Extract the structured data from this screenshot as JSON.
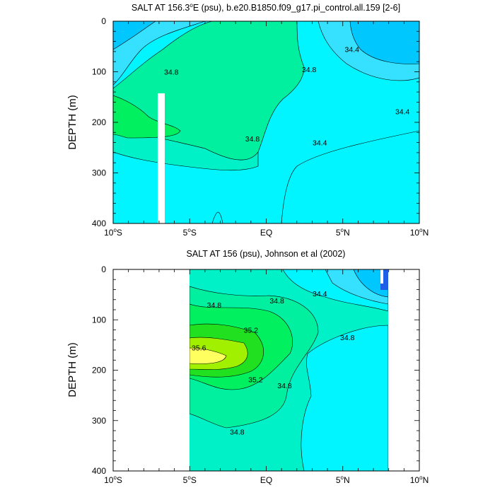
{
  "chart_data": [
    {
      "type": "contour",
      "title": "SALT AT 156.3°E (psu), b.e20.B1850.f09_g17.pi_control.all.159 [2-6]",
      "ylabel": "DEPTH (m)",
      "x_ticks": [
        "10°S",
        "5°S",
        "EQ",
        "5°N",
        "10°N"
      ],
      "x_values": [
        -10,
        -5,
        0,
        5,
        10
      ],
      "y_ticks": [
        "0",
        "100",
        "200",
        "300",
        "400"
      ],
      "y_values": [
        0,
        100,
        200,
        300,
        400
      ],
      "xlim": [
        -10,
        10
      ],
      "ylim": [
        400,
        0
      ],
      "contour_labels": [
        {
          "text": "34.8",
          "x": -6.2,
          "y": 100
        },
        {
          "text": "34.8",
          "x": 2.8,
          "y": 95
        },
        {
          "text": "34.4",
          "x": 5.6,
          "y": 55
        },
        {
          "text": "34.4",
          "x": 8.9,
          "y": 178
        },
        {
          "text": "34.8",
          "x": -0.9,
          "y": 232
        },
        {
          "text": "34.4",
          "x": 3.5,
          "y": 240
        }
      ],
      "fill_colors": [
        "#00c8ff",
        "#36e0ff",
        "#00f5ff",
        "#00f0c8",
        "#00f0a0",
        "#00f060"
      ]
    },
    {
      "type": "contour",
      "title": "SALT AT 156 (psu), Johnson et al (2002)",
      "ylabel": "DEPTH (m)",
      "x_ticks": [
        "10°S",
        "5°S",
        "EQ",
        "5°N",
        "10°N"
      ],
      "x_values": [
        -10,
        -5,
        0,
        5,
        10
      ],
      "y_ticks": [
        "0",
        "100",
        "200",
        "300",
        "400"
      ],
      "y_values": [
        0,
        100,
        200,
        300,
        400
      ],
      "xlim": [
        -10,
        10
      ],
      "ylim": [
        400,
        0
      ],
      "data_extent_x": [
        -5,
        8
      ],
      "contour_labels": [
        {
          "text": "34.8",
          "x": -3.4,
          "y": 70
        },
        {
          "text": "34.8",
          "x": 0.7,
          "y": 62
        },
        {
          "text": "34.4",
          "x": 3.5,
          "y": 48
        },
        {
          "text": "35.2",
          "x": -1.0,
          "y": 120
        },
        {
          "text": "34.8",
          "x": 5.3,
          "y": 135
        },
        {
          "text": "35.6",
          "x": -4.4,
          "y": 155
        },
        {
          "text": "35.2",
          "x": -0.7,
          "y": 218
        },
        {
          "text": "34.8",
          "x": 1.2,
          "y": 230
        },
        {
          "text": "34.8",
          "x": -1.9,
          "y": 322
        }
      ],
      "fill_colors": [
        "#1e5fe6",
        "#00c8ff",
        "#36e0ff",
        "#00f5ff",
        "#00f0c8",
        "#00f0a0",
        "#00f060",
        "#20e020",
        "#a0f000",
        "#ffff60"
      ]
    }
  ]
}
